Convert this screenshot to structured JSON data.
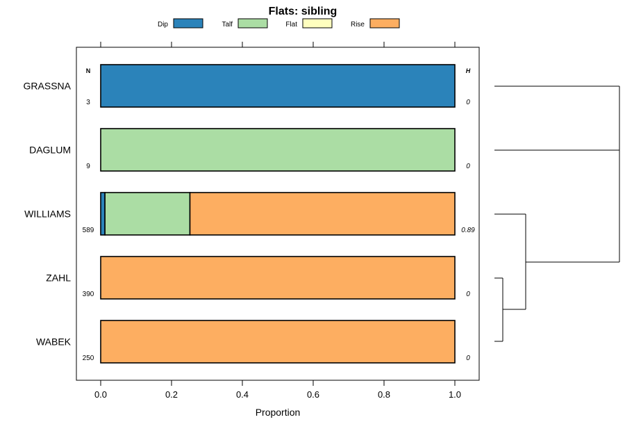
{
  "chart_data": {
    "type": "bar",
    "orientation": "horizontal",
    "stacked": true,
    "title": "Flats: sibling",
    "xlabel": "Proportion",
    "ylabel": "",
    "xlim": [
      0,
      1
    ],
    "xticks": [
      "0.0",
      "0.2",
      "0.4",
      "0.6",
      "0.8",
      "1.0"
    ],
    "n_header": "N",
    "h_header": "H",
    "legend_position": "top",
    "series": [
      {
        "name": "Dip",
        "color": "#2b83ba",
        "values": [
          1.0,
          0.0,
          0.012,
          0.0,
          0.0
        ]
      },
      {
        "name": "Talf",
        "color": "#abdda4",
        "values": [
          0.0,
          1.0,
          0.24,
          0.0,
          0.0
        ]
      },
      {
        "name": "Flat",
        "color": "#ffffbf",
        "values": [
          0.0,
          0.0,
          0.0,
          0.0,
          0.0
        ]
      },
      {
        "name": "Rise",
        "color": "#fdae61",
        "values": [
          0.0,
          0.0,
          0.748,
          1.0,
          1.0
        ]
      }
    ],
    "categories": [
      "GRASSNA",
      "DAGLUM",
      "WILLIAMS",
      "ZAHL",
      "WABEK"
    ],
    "n_values": [
      "3",
      "9",
      "589",
      "390",
      "250"
    ],
    "h_values": [
      "0",
      "0",
      "0.89",
      "0",
      "0"
    ],
    "dendrogram": "GRASSNA, DAGLUM, WILLIAMS, ZAHL, WABEK joined as ((GRASSNA, DAGLUM), (WILLIAMS, (ZAHL, WABEK)))"
  }
}
